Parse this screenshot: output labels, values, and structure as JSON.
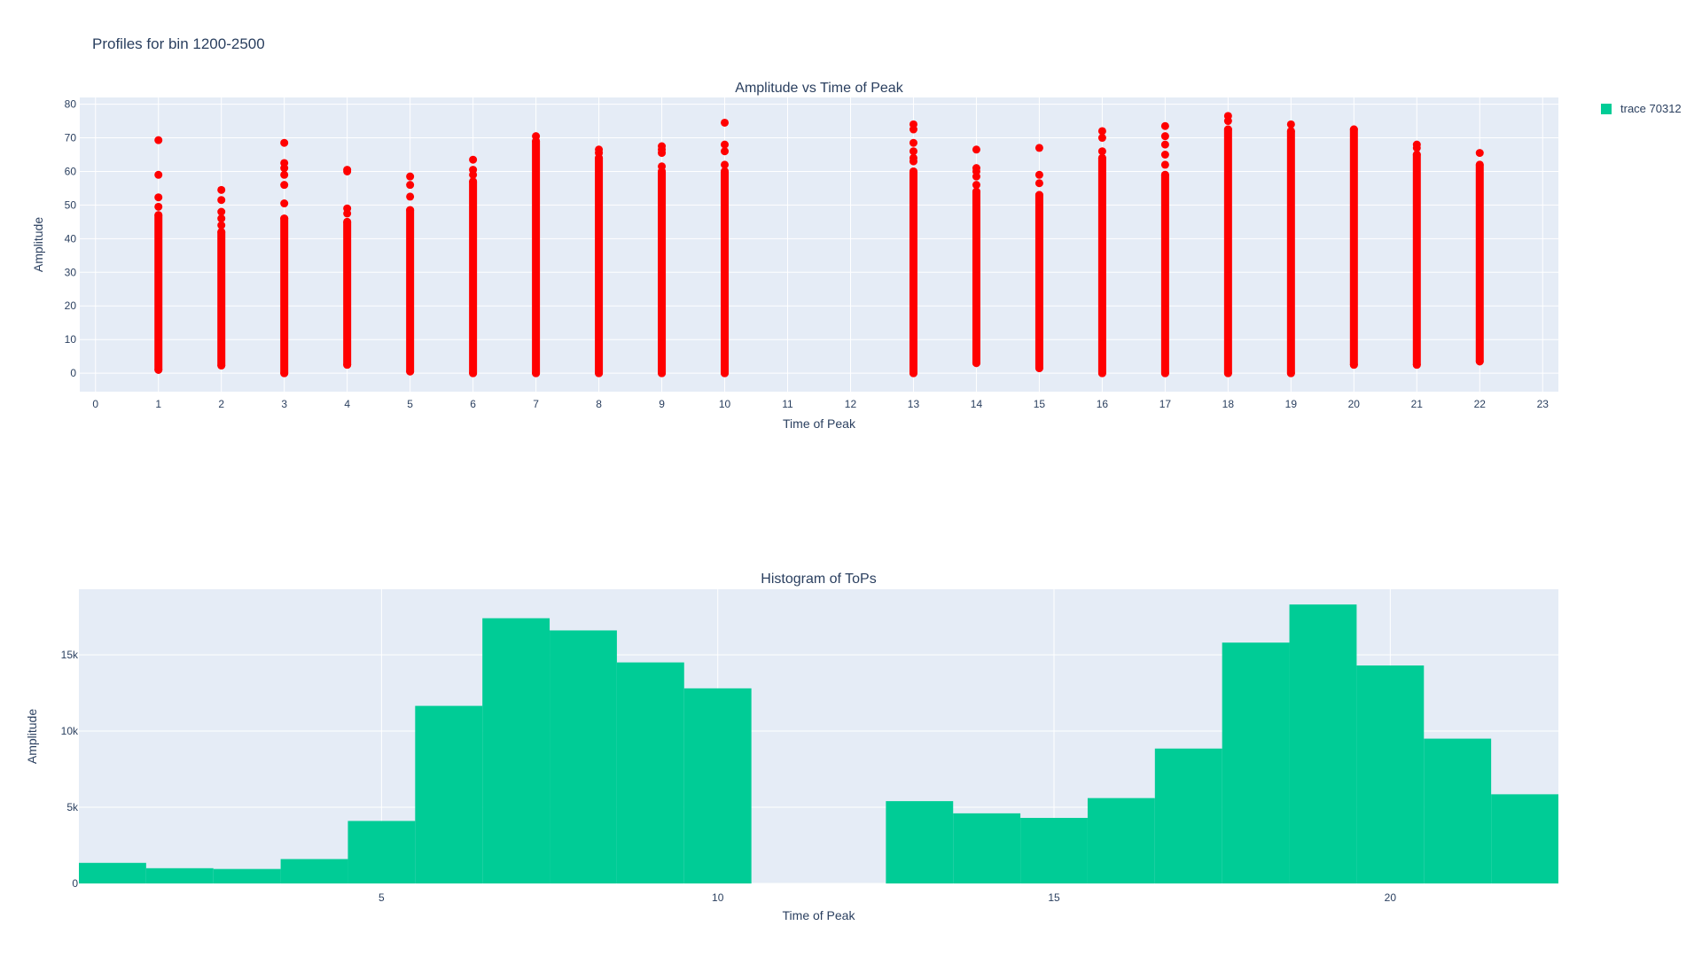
{
  "title": "Profiles for bin 1200-2500",
  "legend": {
    "entries": [
      {
        "name": "trace 70312",
        "color": "#00cc96"
      }
    ]
  },
  "colors": {
    "plot_background": "#e5ecf6",
    "gridline": "#ffffff",
    "scatter_marker": "#ff0000",
    "histogram_bar": "#00cc96",
    "text": "#2a3f5f"
  },
  "chart_data": [
    {
      "type": "scatter",
      "title": "Amplitude vs Time of Peak",
      "xlabel": "Time of Peak",
      "ylabel": "Amplitude",
      "xlim": [
        -0.25,
        23.25
      ],
      "ylim": [
        -5.5,
        82
      ],
      "xticks": [
        0,
        1,
        2,
        3,
        4,
        5,
        6,
        7,
        8,
        9,
        10,
        11,
        12,
        13,
        14,
        15,
        16,
        17,
        18,
        19,
        20,
        21,
        22,
        23
      ],
      "yticks": [
        0,
        10,
        20,
        30,
        40,
        50,
        60,
        70,
        80
      ],
      "grid": true,
      "marker_color": "#ff0000",
      "columns": [
        {
          "x": 1,
          "min": 1,
          "max": 47,
          "outliers": [
            49.5,
            52.3,
            59,
            69.3
          ]
        },
        {
          "x": 2,
          "min": 2.3,
          "max": 42,
          "outliers": [
            44,
            46,
            48,
            51.5,
            54.5
          ]
        },
        {
          "x": 3,
          "min": 0,
          "max": 46,
          "outliers": [
            50.5,
            56,
            59,
            61,
            62.5,
            68.5
          ]
        },
        {
          "x": 4,
          "min": 2.5,
          "max": 45,
          "outliers": [
            47.5,
            49,
            60,
            60.5
          ]
        },
        {
          "x": 5,
          "min": 0.5,
          "max": 48.5,
          "outliers": [
            52.5,
            56,
            58.5
          ]
        },
        {
          "x": 6,
          "min": 0,
          "max": 57,
          "outliers": [
            59,
            60.5,
            63.5
          ]
        },
        {
          "x": 7,
          "min": 0,
          "max": 69,
          "outliers": [
            70.5
          ]
        },
        {
          "x": 8,
          "min": 0,
          "max": 64,
          "outliers": [
            65.5,
            66.5
          ]
        },
        {
          "x": 9,
          "min": 0,
          "max": 60,
          "outliers": [
            61.5,
            65.5,
            66.5,
            67.5
          ]
        },
        {
          "x": 10,
          "min": 0,
          "max": 60,
          "outliers": [
            62,
            66,
            68,
            74.5
          ]
        },
        {
          "x": 13,
          "min": 0,
          "max": 60,
          "outliers": [
            63,
            64,
            66,
            68.5,
            72.5,
            74
          ]
        },
        {
          "x": 14,
          "min": 3,
          "max": 54,
          "outliers": [
            56,
            58.5,
            60,
            61,
            66.5
          ]
        },
        {
          "x": 15,
          "min": 1.5,
          "max": 53,
          "outliers": [
            56.5,
            59,
            67
          ]
        },
        {
          "x": 16,
          "min": 0,
          "max": 64,
          "outliers": [
            66,
            70,
            72
          ]
        },
        {
          "x": 17,
          "min": 0,
          "max": 59,
          "outliers": [
            62,
            65,
            68,
            70.5,
            73.5
          ]
        },
        {
          "x": 18,
          "min": 0,
          "max": 72.5,
          "outliers": [
            75,
            76.5
          ]
        },
        {
          "x": 19,
          "min": 0,
          "max": 72,
          "outliers": [
            74
          ]
        },
        {
          "x": 20,
          "min": 2.5,
          "max": 72.5,
          "outliers": []
        },
        {
          "x": 21,
          "min": 2.5,
          "max": 65,
          "outliers": [
            67,
            68
          ]
        },
        {
          "x": 22,
          "min": 3.5,
          "max": 62,
          "outliers": [
            65.5
          ]
        }
      ]
    },
    {
      "type": "bar",
      "title": "Histogram of ToPs",
      "xlabel": "Time of Peak",
      "ylabel": "Amplitude",
      "xlim": [
        0.5,
        22.5
      ],
      "ylim": [
        0,
        19300
      ],
      "xticks": [
        5,
        10,
        15,
        20
      ],
      "yticks": [
        0,
        5000,
        10000,
        15000
      ],
      "ytick_labels": [
        "0",
        "5k",
        "10k",
        "15k"
      ],
      "grid": true,
      "bar_color": "#00cc96",
      "bin_width": 1,
      "bins": [
        {
          "x": 1,
          "value": 1350
        },
        {
          "x": 2,
          "value": 1000
        },
        {
          "x": 3,
          "value": 950
        },
        {
          "x": 4,
          "value": 1600
        },
        {
          "x": 5,
          "value": 4100
        },
        {
          "x": 6,
          "value": 11650
        },
        {
          "x": 7,
          "value": 17400
        },
        {
          "x": 8,
          "value": 16600
        },
        {
          "x": 9,
          "value": 14500
        },
        {
          "x": 10,
          "value": 12800
        },
        {
          "x": 11,
          "value": 0
        },
        {
          "x": 12,
          "value": 0
        },
        {
          "x": 13,
          "value": 5400
        },
        {
          "x": 14,
          "value": 4600
        },
        {
          "x": 15,
          "value": 4300
        },
        {
          "x": 16,
          "value": 5600
        },
        {
          "x": 17,
          "value": 8850
        },
        {
          "x": 18,
          "value": 15800
        },
        {
          "x": 19,
          "value": 18300
        },
        {
          "x": 20,
          "value": 14300
        },
        {
          "x": 21,
          "value": 9500
        },
        {
          "x": 22,
          "value": 5850
        }
      ]
    }
  ]
}
